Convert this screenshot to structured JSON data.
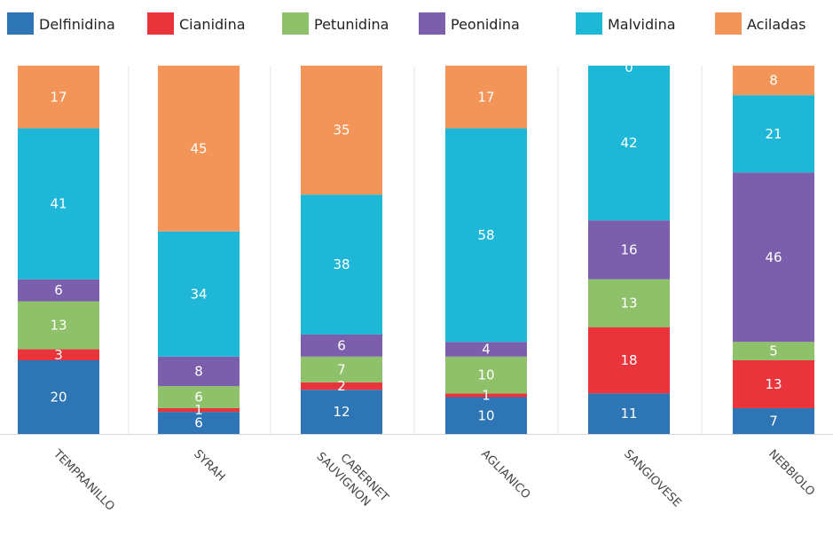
{
  "chart_data": {
    "type": "bar",
    "stacked": true,
    "normalized_percent": true,
    "title": "",
    "xlabel": "",
    "ylabel": "",
    "ylim": [
      0,
      100
    ],
    "legend_position": "top",
    "grid": false,
    "categories": [
      "TEMPRANILLO",
      "SYRAH",
      "CABERNET SAUVIGNON",
      "AGLIANICO",
      "SANGIOVESE",
      "NEBBIOLO"
    ],
    "series": [
      {
        "name": "Delfinidina",
        "color": "#2e75b6",
        "values": [
          20,
          6,
          12,
          10,
          11,
          7
        ]
      },
      {
        "name": "Cianidina",
        "color": "#e8343a",
        "values": [
          3,
          1,
          2,
          1,
          18,
          13
        ]
      },
      {
        "name": "Petunidina",
        "color": "#8fc16a",
        "values": [
          13,
          6,
          7,
          10,
          13,
          5
        ]
      },
      {
        "name": "Peonidina",
        "color": "#7b5fad",
        "values": [
          6,
          8,
          6,
          4,
          16,
          46
        ]
      },
      {
        "name": "Malvidina",
        "color": "#1fb7d8",
        "values": [
          41,
          34,
          38,
          58,
          42,
          21
        ]
      },
      {
        "name": "Aciladas",
        "color": "#f39559",
        "values": [
          17,
          45,
          35,
          17,
          0,
          8
        ]
      }
    ]
  }
}
